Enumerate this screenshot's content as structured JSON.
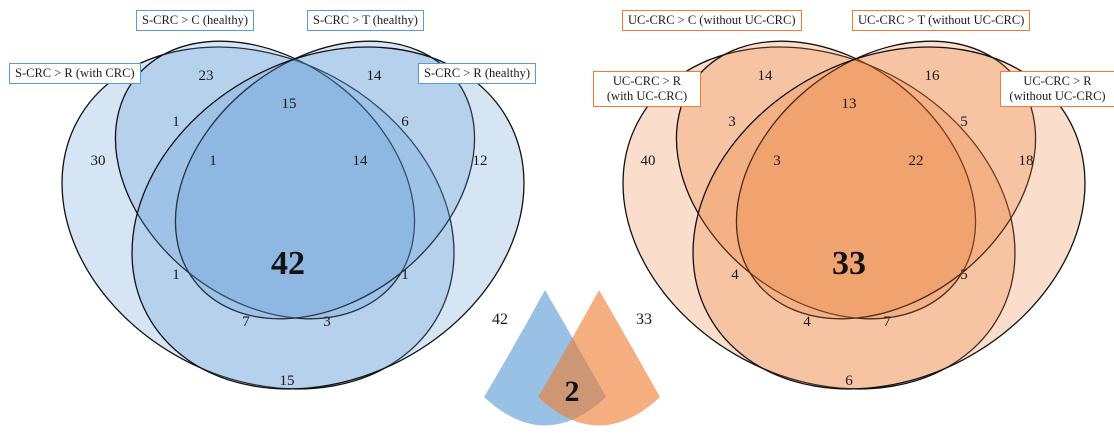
{
  "left_venn": {
    "color": "#5b9bd5",
    "labels": {
      "set_c": "S-CRC > C (healthy)",
      "set_t": "S-CRC > T (healthy)",
      "set_r_crc": "S-CRC > R (with CRC)",
      "set_r_healthy": "S-CRC > R (healthy)"
    },
    "counts": {
      "only_r_crc": "30",
      "only_c": "23",
      "only_t": "14",
      "only_r_healthy": "12",
      "r_crc_c": "1",
      "c_t": "15",
      "t_r_healthy": "6",
      "r_crc_c_t": "1",
      "c_t_r_healthy": "14",
      "all_four": "42",
      "r_crc_t": "1",
      "c_r_healthy": "1",
      "r_crc_t_r_healthy": "7",
      "r_crc_c_r_healthy": "3",
      "r_crc_r_healthy": "15"
    }
  },
  "right_venn": {
    "color": "#ed7d31",
    "labels": {
      "set_c": "UC-CRC > C (without UC-CRC)",
      "set_t": "UC-CRC > T (without UC-CRC)",
      "set_r_with": "UC-CRC > R (with UC-CRC)",
      "set_r_without": "UC-CRC > R (without UC-CRC)"
    },
    "counts": {
      "only_r_with": "40",
      "only_c": "14",
      "only_t": "16",
      "only_r_without": "18",
      "r_with_c": "3",
      "c_t": "13",
      "t_r_without": "5",
      "r_with_c_t": "3",
      "c_t_r_without": "22",
      "all_four": "33",
      "r_with_t": "4",
      "c_r_without": "5",
      "r_with_t_r_without": "4",
      "r_with_c_r_without": "7",
      "r_with_r_without": "6"
    }
  },
  "comparison": {
    "left_total": "42",
    "right_total": "33",
    "overlap": "2",
    "left_color": "#5b9bd5",
    "right_color": "#ed7d31"
  }
}
